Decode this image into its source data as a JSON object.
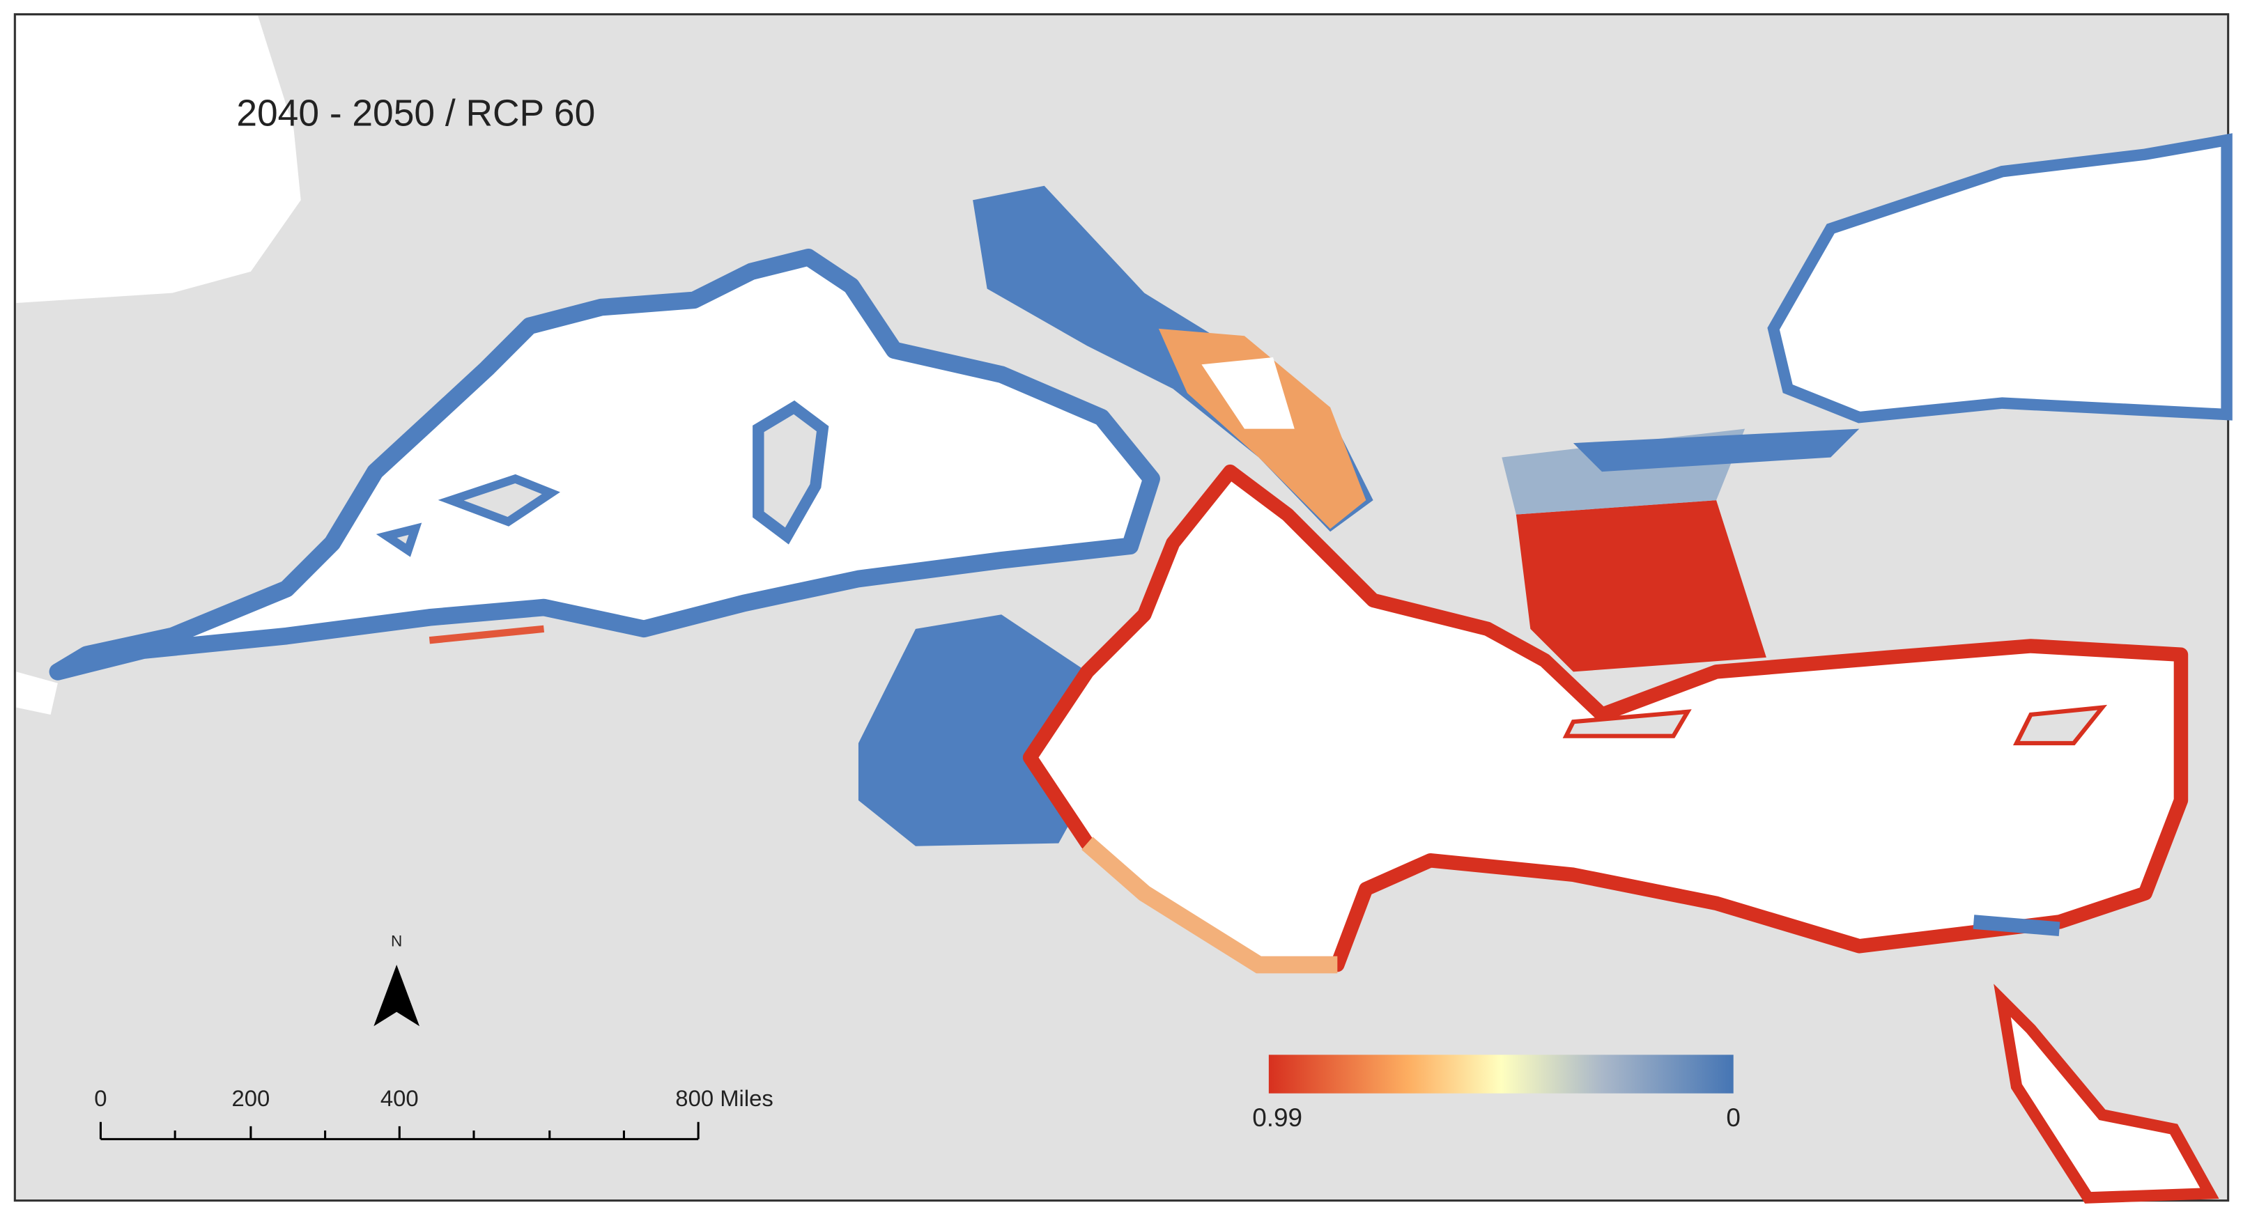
{
  "title": "2040 - 2050 / RCP 60",
  "north_arrow": {
    "label": "N"
  },
  "scale_bar": {
    "labels": [
      "0",
      "200",
      "400",
      "800 Miles"
    ]
  },
  "legend": {
    "labels": [
      "0.99",
      "0"
    ]
  }
}
